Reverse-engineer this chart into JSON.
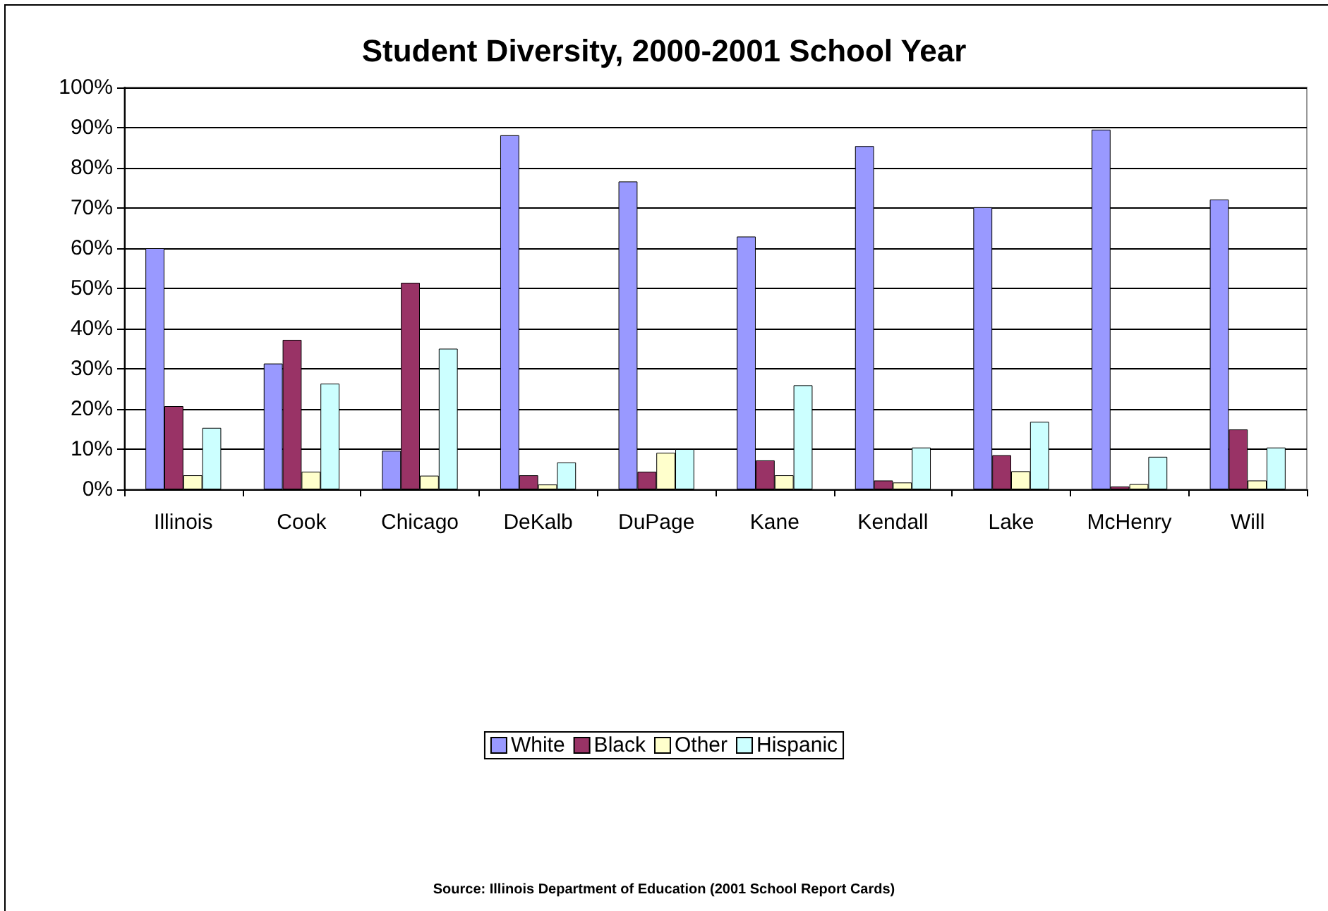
{
  "chart_data": {
    "type": "bar",
    "title": "Student Diversity, 2000-2001 School Year",
    "categories": [
      "Illinois",
      "Cook",
      "Chicago",
      "DeKalb",
      "DuPage",
      "Kane",
      "Kendall",
      "Lake",
      "McHenry",
      "Will"
    ],
    "series": [
      {
        "name": "White",
        "color": "#9999ff",
        "values": [
          60,
          31.3,
          9.6,
          88.1,
          76.6,
          62.9,
          85.4,
          70.2,
          89.5,
          72.1
        ]
      },
      {
        "name": "Black",
        "color": "#993366",
        "values": [
          20.7,
          37.2,
          51.4,
          3.5,
          4.4,
          7.2,
          2.2,
          8.5,
          0.7,
          14.9
        ]
      },
      {
        "name": "Other",
        "color": "#ffffcc",
        "values": [
          3.5,
          4.4,
          3.4,
          1.2,
          9.1,
          3.5,
          1.7,
          4.5,
          1.3,
          2.2
        ]
      },
      {
        "name": "Hispanic",
        "color": "#ccffff",
        "values": [
          15.3,
          26.3,
          35,
          6.7,
          10,
          25.9,
          10.4,
          16.8,
          8.1,
          10.4
        ]
      }
    ],
    "ylim": [
      0,
      100
    ],
    "yticks": [
      {
        "value": 0,
        "label": "0%"
      },
      {
        "value": 10,
        "label": "10%"
      },
      {
        "value": 20,
        "label": "20%"
      },
      {
        "value": 30,
        "label": "30%"
      },
      {
        "value": 40,
        "label": "40%"
      },
      {
        "value": 50,
        "label": "50%"
      },
      {
        "value": 60,
        "label": "60%"
      },
      {
        "value": 70,
        "label": "70%"
      },
      {
        "value": 80,
        "label": "80%"
      },
      {
        "value": 90,
        "label": "90%"
      },
      {
        "value": 100,
        "label": "100%"
      }
    ],
    "grid": "y",
    "legend": "bottom",
    "annotations": [
      "Source: Illinois Department of Education (2001 School Report Cards)"
    ]
  }
}
